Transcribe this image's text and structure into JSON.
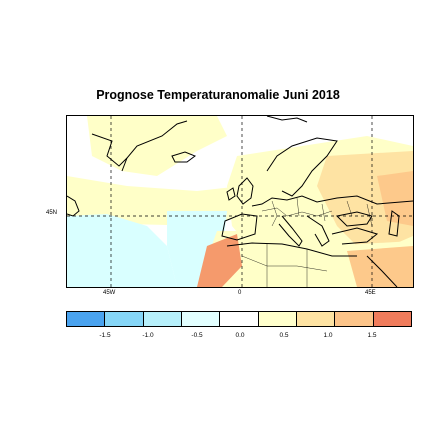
{
  "title": "Prognose Temperaturanomalie Juni 2018",
  "map": {
    "lat_label": "45N",
    "lon_labels": [
      "45W",
      "0",
      "45E"
    ],
    "anomaly_colors": {
      "neutral_cool": "#d9ffff",
      "neutral_warm": "#ffffc8",
      "warm_0_5": "#fee3a3",
      "warm_1_0": "#fdc98b",
      "warm_1_5": "#f59a6c"
    }
  },
  "colorbar": {
    "colors": [
      "#4aa3ef",
      "#86d6f7",
      "#b7f0fb",
      "#e2ffff",
      "#ffffff",
      "#ffffcc",
      "#fee3a3",
      "#fcc489",
      "#f07c5c"
    ],
    "ticks": [
      "-1.5",
      "-1.0",
      "-0.5",
      "0.0",
      "0.5",
      "1.0",
      "1.5"
    ]
  }
}
